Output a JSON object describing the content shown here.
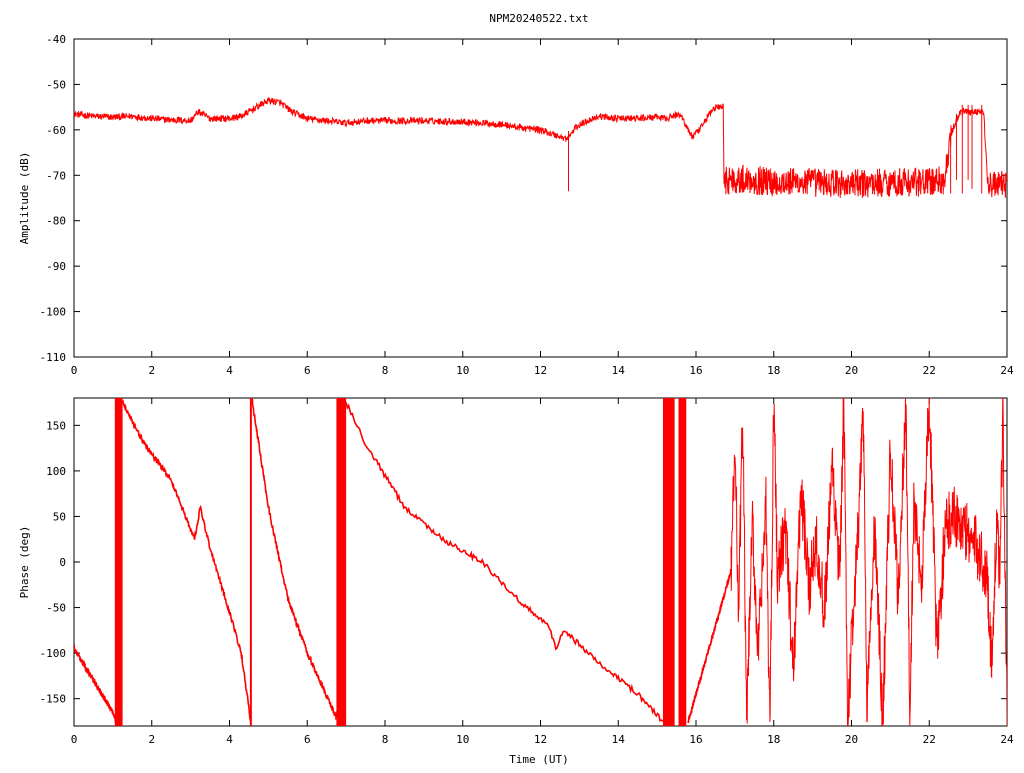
{
  "chart_data": [
    {
      "type": "line",
      "title": "NPM20240522.txt",
      "xlabel": "",
      "ylabel": "Amplitude (dB)",
      "xlim": [
        0,
        24
      ],
      "ylim": [
        -110,
        -40
      ],
      "xticks": [
        "0",
        "2",
        "4",
        "6",
        "8",
        "10",
        "12",
        "14",
        "16",
        "18",
        "20",
        "22",
        "24"
      ],
      "yticks": [
        "-40",
        "-50",
        "-60",
        "-70",
        "-80",
        "-90",
        "-100",
        "-110"
      ],
      "grid": false,
      "color": "#ff0000",
      "series": [
        {
          "points": [
            [
              0,
              -56.5
            ],
            [
              0.5,
              -57
            ],
            [
              1.0,
              -57.2
            ],
            [
              1.5,
              -57
            ],
            [
              2.0,
              -57.5
            ],
            [
              2.5,
              -57.8
            ],
            [
              3.0,
              -58
            ],
            [
              3.2,
              -56
            ],
            [
              3.5,
              -57.5
            ],
            [
              4.0,
              -57.5
            ],
            [
              4.3,
              -57
            ],
            [
              4.6,
              -55.5
            ],
            [
              5.0,
              -53.5
            ],
            [
              5.3,
              -54
            ],
            [
              5.6,
              -56
            ],
            [
              6.0,
              -57.5
            ],
            [
              6.5,
              -58
            ],
            [
              7.0,
              -58.5
            ],
            [
              7.5,
              -58
            ],
            [
              8.0,
              -58
            ],
            [
              9.0,
              -58
            ],
            [
              10.0,
              -58.2
            ],
            [
              11.0,
              -58.8
            ],
            [
              11.5,
              -59.5
            ],
            [
              12.0,
              -60
            ],
            [
              12.5,
              -61.5
            ],
            [
              12.7,
              -62
            ],
            [
              12.9,
              -59.5
            ],
            [
              13.2,
              -58
            ],
            [
              13.5,
              -57
            ],
            [
              14.0,
              -57.5
            ],
            [
              14.5,
              -57.5
            ],
            [
              15.0,
              -57.2
            ],
            [
              15.2,
              -57.5
            ],
            [
              15.4,
              -57
            ],
            [
              15.6,
              -56.5
            ],
            [
              15.8,
              -60
            ],
            [
              15.9,
              -61.5
            ],
            [
              16.1,
              -60
            ],
            [
              16.3,
              -57
            ],
            [
              16.5,
              -55
            ],
            [
              16.7,
              -55
            ],
            [
              16.72,
              -71
            ],
            [
              17.0,
              -71
            ],
            [
              17.5,
              -71
            ],
            [
              18.0,
              -71.5
            ],
            [
              19.0,
              -71.5
            ],
            [
              20.0,
              -72
            ],
            [
              21.0,
              -71.5
            ],
            [
              22.0,
              -71.5
            ],
            [
              22.4,
              -71
            ],
            [
              22.5,
              -65
            ],
            [
              22.6,
              -60
            ],
            [
              22.8,
              -56
            ],
            [
              23.0,
              -56
            ],
            [
              23.4,
              -56
            ],
            [
              23.5,
              -72
            ],
            [
              24.0,
              -72
            ]
          ],
          "noise": [
            [
              0,
              1.5
            ],
            [
              16.7,
              1.5
            ],
            [
              16.72,
              6.5
            ],
            [
              22.6,
              6.5
            ],
            [
              22.61,
              1.5
            ],
            [
              23.45,
              1.5
            ],
            [
              23.5,
              6
            ],
            [
              24,
              6
            ]
          ],
          "spikes": [
            [
              12.72,
              -73.5
            ],
            [
              22.55,
              -74
            ],
            [
              22.7,
              -71
            ],
            [
              22.85,
              -74
            ],
            [
              23.0,
              -71
            ],
            [
              23.1,
              -73
            ],
            [
              23.35,
              -74
            ]
          ]
        }
      ]
    },
    {
      "type": "line",
      "title": "",
      "xlabel": "Time (UT)",
      "ylabel": "Phase (deg)",
      "xlim": [
        0,
        24
      ],
      "ylim": [
        -180,
        180
      ],
      "xticks": [
        "0",
        "2",
        "4",
        "6",
        "8",
        "10",
        "12",
        "14",
        "16",
        "18",
        "20",
        "22",
        "24"
      ],
      "yticks": [
        "150",
        "100",
        "50",
        "0",
        "-50",
        "-100",
        "-150"
      ],
      "grid": false,
      "color": "#ff0000",
      "segments": [
        [
          [
            0,
            -95
          ],
          [
            0.5,
            -130
          ],
          [
            1.0,
            -165
          ],
          [
            1.1,
            -178
          ]
        ],
        [
          [
            1.25,
            175
          ],
          [
            1.8,
            130
          ],
          [
            2.5,
            90
          ],
          [
            3.1,
            25
          ],
          [
            3.25,
            60
          ],
          [
            3.5,
            15
          ],
          [
            4.0,
            -55
          ],
          [
            4.3,
            -100
          ],
          [
            4.5,
            -160
          ],
          [
            4.55,
            -178
          ]
        ],
        [
          [
            4.58,
            178
          ],
          [
            5.0,
            60
          ],
          [
            5.5,
            -40
          ],
          [
            6.0,
            -100
          ],
          [
            6.8,
            -175
          ]
        ],
        [
          [
            7.0,
            175
          ],
          [
            7.5,
            130
          ],
          [
            8.5,
            60
          ],
          [
            9.5,
            25
          ],
          [
            10.5,
            0
          ],
          [
            11.5,
            -45
          ],
          [
            12.2,
            -70
          ],
          [
            12.4,
            -95
          ],
          [
            12.6,
            -75
          ],
          [
            13.5,
            -110
          ],
          [
            14.5,
            -145
          ],
          [
            15.2,
            -178
          ]
        ],
        [
          [
            15.8,
            -175
          ],
          [
            16.5,
            -70
          ],
          [
            16.9,
            -10
          ]
        ]
      ],
      "bands": [
        [
          1.05,
          1.25
        ],
        [
          6.75,
          7.0
        ],
        [
          15.15,
          15.45
        ],
        [
          15.55,
          15.75
        ]
      ],
      "vlines": [
        4.55
      ],
      "chaos": {
        "x_start": 16.9,
        "x_end": 24.0,
        "points": [
          [
            16.9,
            -10
          ],
          [
            17.0,
            120
          ],
          [
            17.1,
            -50
          ],
          [
            17.2,
            170
          ],
          [
            17.3,
            -180
          ],
          [
            17.45,
            40
          ],
          [
            17.6,
            -100
          ],
          [
            17.8,
            60
          ],
          [
            17.9,
            -180
          ],
          [
            18.0,
            180
          ],
          [
            18.1,
            -20
          ],
          [
            18.3,
            40
          ],
          [
            18.5,
            -120
          ],
          [
            18.7,
            80
          ],
          [
            18.9,
            -30
          ],
          [
            19.1,
            30
          ],
          [
            19.3,
            -60
          ],
          [
            19.5,
            100
          ],
          [
            19.7,
            -20
          ],
          [
            19.8,
            180
          ],
          [
            19.9,
            -180
          ],
          [
            20.0,
            -90
          ],
          [
            20.2,
            50
          ],
          [
            20.3,
            180
          ],
          [
            20.4,
            -160
          ],
          [
            20.6,
            40
          ],
          [
            20.8,
            -180
          ],
          [
            21.0,
            120
          ],
          [
            21.2,
            -40
          ],
          [
            21.4,
            180
          ],
          [
            21.5,
            -180
          ],
          [
            21.6,
            60
          ],
          [
            21.8,
            -20
          ],
          [
            22.0,
            180
          ],
          [
            22.2,
            -100
          ],
          [
            22.4,
            30
          ],
          [
            22.6,
            60
          ],
          [
            22.8,
            40
          ],
          [
            23.0,
            30
          ],
          [
            23.3,
            10
          ],
          [
            23.5,
            -20
          ],
          [
            23.6,
            -110
          ],
          [
            23.75,
            60
          ],
          [
            23.8,
            -40
          ],
          [
            23.9,
            170
          ],
          [
            24.0,
            -178
          ]
        ]
      }
    }
  ]
}
